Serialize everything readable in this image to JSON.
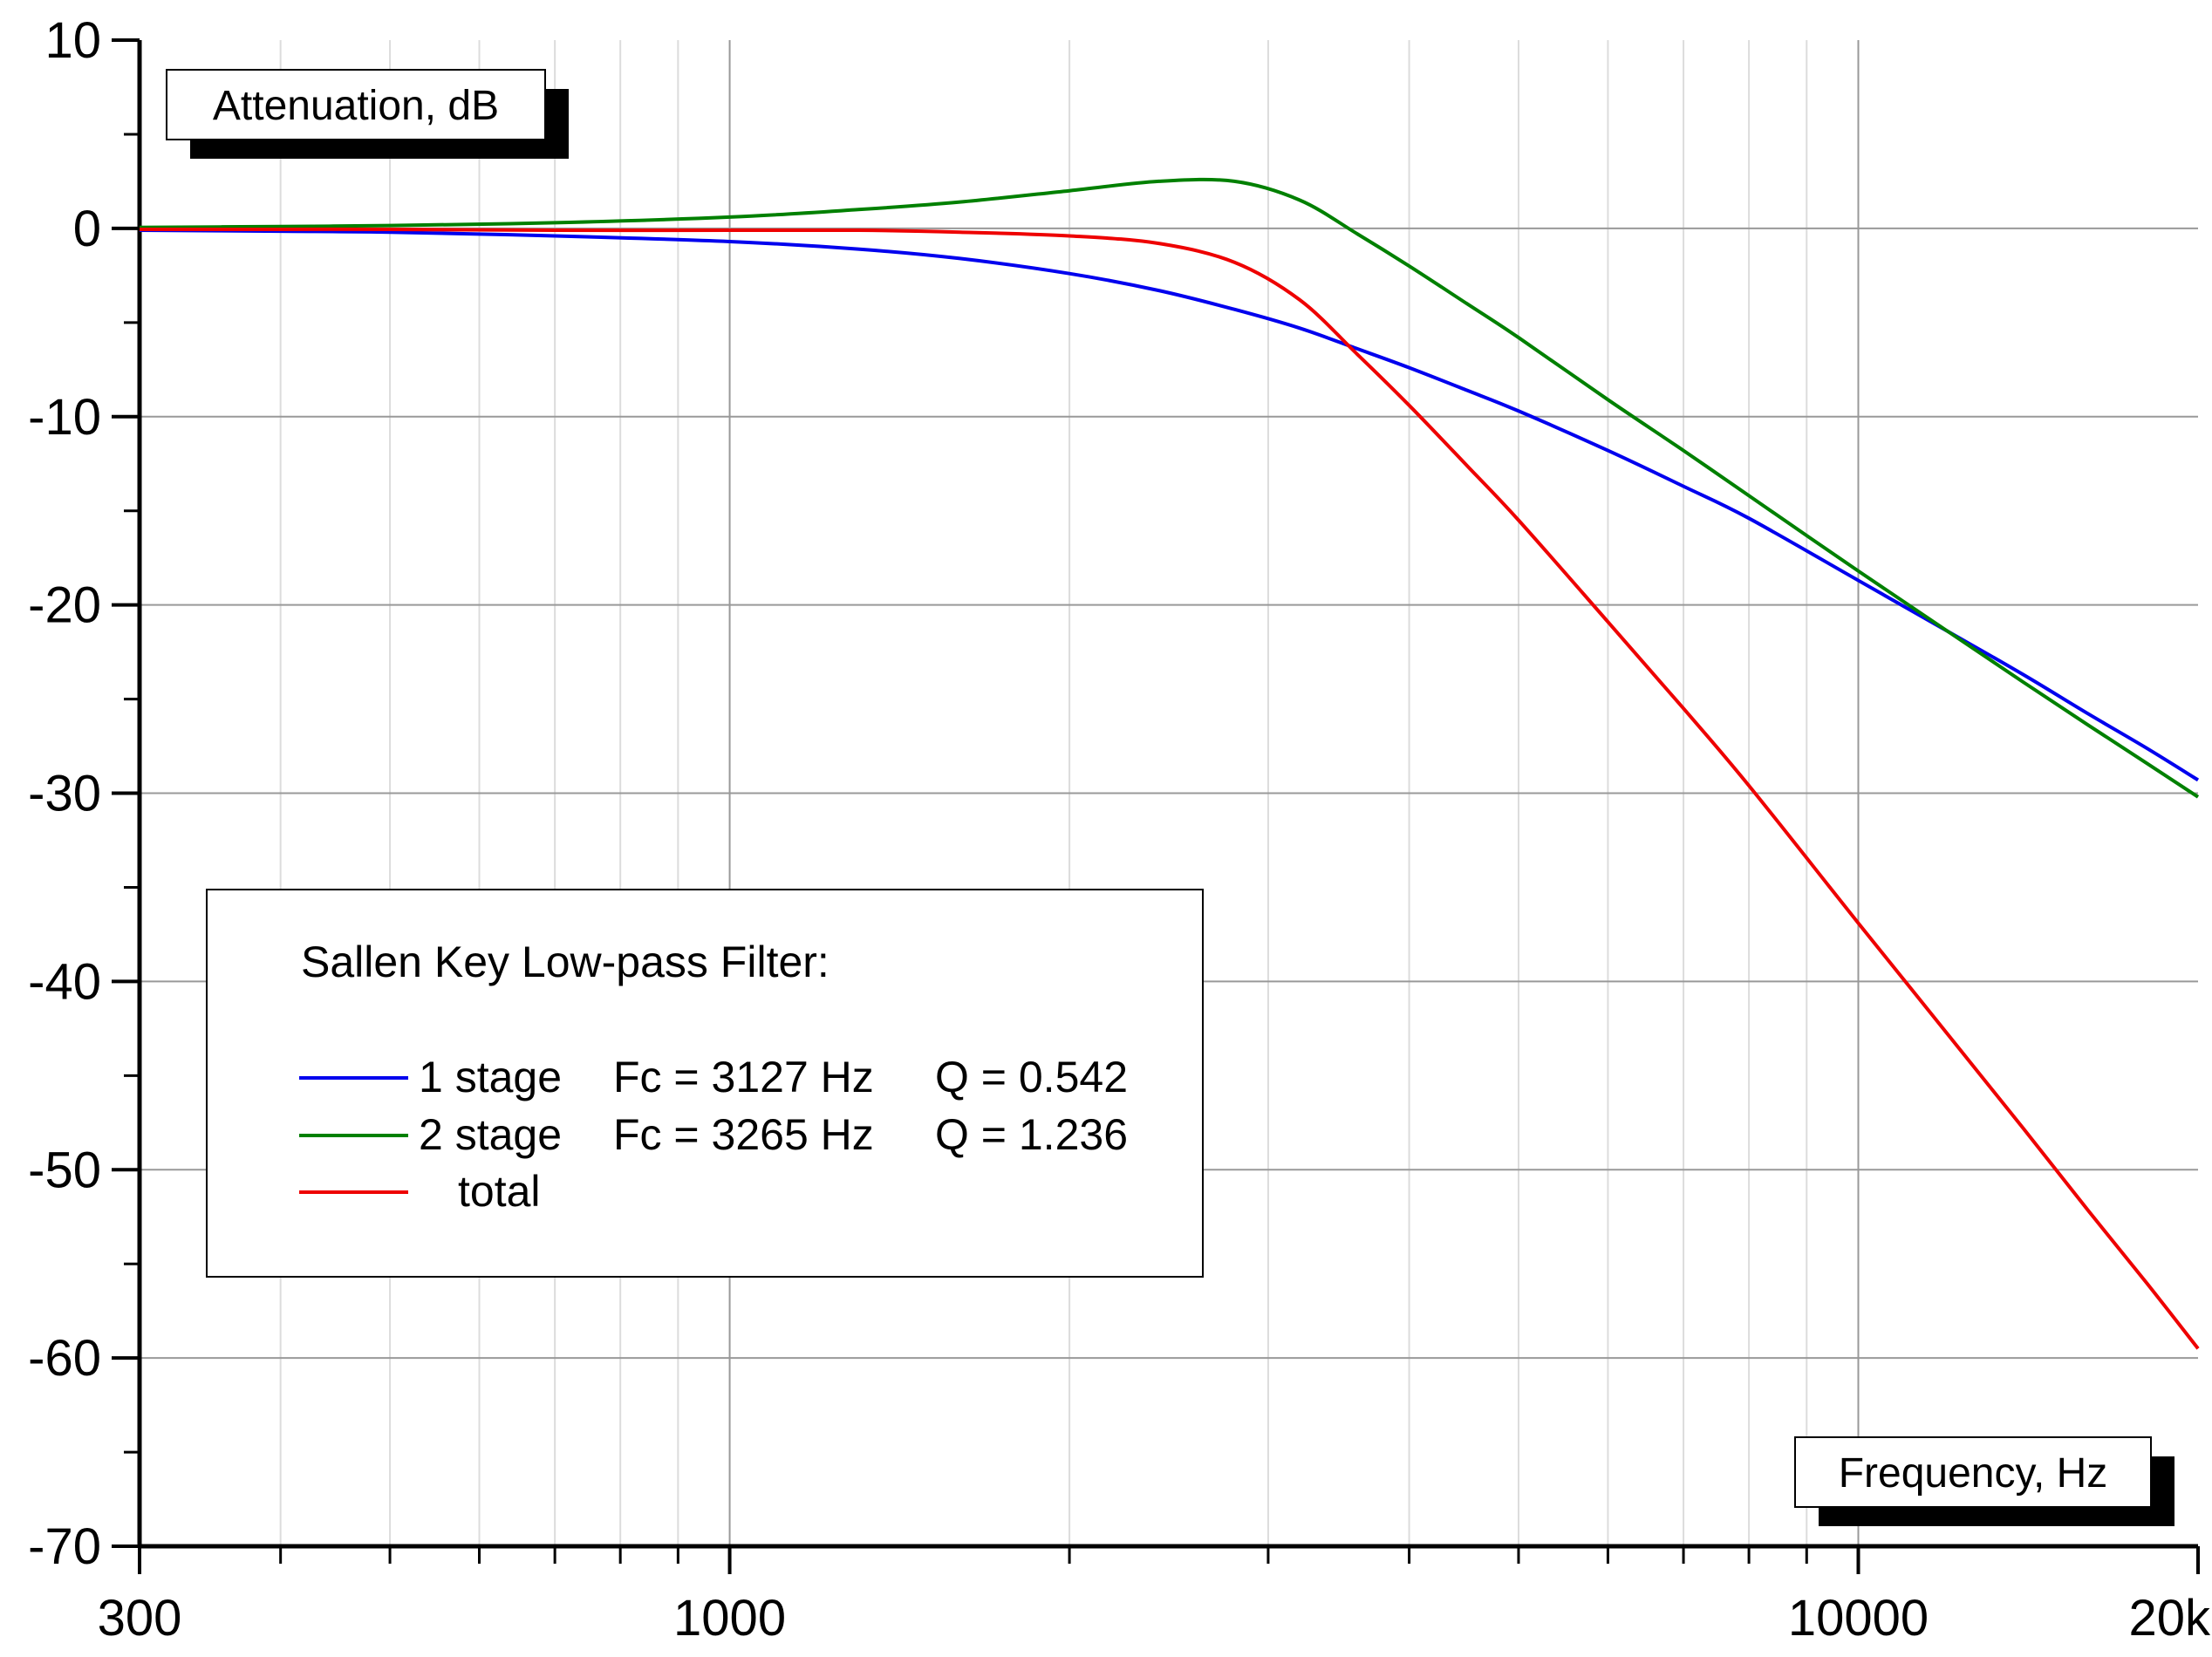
{
  "chart_data": {
    "type": "line",
    "xscale": "log",
    "xlim": [
      300,
      20000
    ],
    "ylim": [
      -70,
      10
    ],
    "grid": true,
    "ylabel": "Attenuation, dB",
    "xlabel": "Frequency, Hz",
    "x_ticks": [
      {
        "value": 300,
        "label": "300"
      },
      {
        "value": 1000,
        "label": "1000"
      },
      {
        "value": 10000,
        "label": "10000"
      },
      {
        "value": 20000,
        "label": "20k"
      }
    ],
    "y_ticks": [
      {
        "value": 10,
        "label": "10"
      },
      {
        "value": 0,
        "label": "0"
      },
      {
        "value": -10,
        "label": "-10"
      },
      {
        "value": -20,
        "label": "-20"
      },
      {
        "value": -30,
        "label": "-30"
      },
      {
        "value": -40,
        "label": "-40"
      },
      {
        "value": -50,
        "label": "-50"
      },
      {
        "value": -60,
        "label": "-60"
      },
      {
        "value": -70,
        "label": "-70"
      }
    ],
    "legend": {
      "title": "Sallen Key Low-pass Filter:",
      "placement": "lower-left",
      "entries": [
        {
          "series": "1 stage",
          "stage": "1 stage",
          "fc": "Fc = 3127 Hz",
          "q": "Q = 0.542"
        },
        {
          "series": "2 stage",
          "stage": "2 stage",
          "fc": "Fc = 3265 Hz",
          "q": "Q = 1.236"
        },
        {
          "series": "total",
          "stage": "total",
          "fc": "",
          "q": ""
        }
      ]
    },
    "x": [
      300,
      400,
      500,
      700,
      1000,
      1300,
      1600,
      2000,
      2400,
      2800,
      3200,
      3600,
      4000,
      4500,
      5000,
      6000,
      7000,
      8000,
      10000,
      12000,
      14000,
      16000,
      18000,
      20000
    ],
    "series": [
      {
        "name": "1 stage",
        "color": "#0000ee",
        "values": [
          -0.1,
          -0.15,
          -0.2,
          -0.4,
          -0.7,
          -1.1,
          -1.6,
          -2.4,
          -3.3,
          -4.3,
          -5.3,
          -6.4,
          -7.4,
          -8.6,
          -9.7,
          -11.8,
          -13.7,
          -15.4,
          -18.7,
          -21.4,
          -23.7,
          -25.8,
          -27.6,
          -29.3
        ]
      },
      {
        "name": "2 stage",
        "color": "#008000",
        "values": [
          0.05,
          0.1,
          0.15,
          0.3,
          0.6,
          1.0,
          1.4,
          2.0,
          2.5,
          2.5,
          1.5,
          -0.3,
          -2.0,
          -4.0,
          -5.8,
          -9.1,
          -11.8,
          -14.2,
          -18.2,
          -21.4,
          -24.1,
          -26.4,
          -28.4,
          -30.2
        ]
      },
      {
        "name": "total",
        "color": "#ee0000",
        "values": [
          -0.05,
          -0.05,
          -0.05,
          -0.1,
          -0.1,
          -0.1,
          -0.2,
          -0.4,
          -0.8,
          -1.8,
          -3.8,
          -6.7,
          -9.4,
          -12.6,
          -15.5,
          -20.9,
          -25.5,
          -29.6,
          -36.9,
          -42.8,
          -47.8,
          -52.2,
          -56.0,
          -59.5
        ]
      }
    ]
  }
}
